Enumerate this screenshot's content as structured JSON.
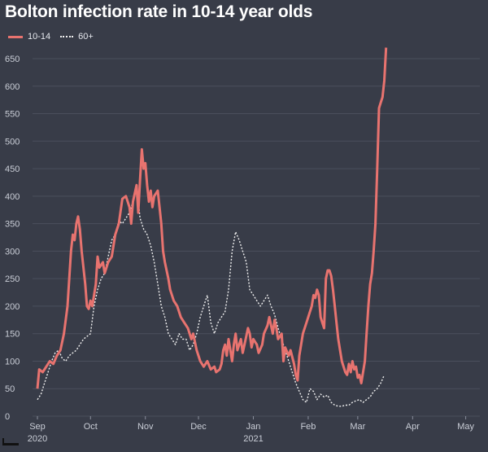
{
  "chart_data": {
    "type": "line",
    "title": "Bolton infection rate in 10-14 year olds",
    "legend_position": "top-left",
    "grid": true,
    "ylim": [
      0,
      650
    ],
    "yticks": [
      0,
      50,
      100,
      150,
      200,
      250,
      300,
      350,
      400,
      450,
      500,
      550,
      600,
      650
    ],
    "xlim": [
      0,
      250
    ],
    "xticks": [
      {
        "x": 0,
        "label": "Sep",
        "sublabel": "2020"
      },
      {
        "x": 30,
        "label": "Oct",
        "sublabel": ""
      },
      {
        "x": 61,
        "label": "Nov",
        "sublabel": ""
      },
      {
        "x": 91,
        "label": "Dec",
        "sublabel": ""
      },
      {
        "x": 122,
        "label": "Jan",
        "sublabel": "2021"
      },
      {
        "x": 153,
        "label": "Feb",
        "sublabel": ""
      },
      {
        "x": 181,
        "label": "Mar",
        "sublabel": ""
      },
      {
        "x": 212,
        "label": "Apr",
        "sublabel": ""
      },
      {
        "x": 242,
        "label": "May",
        "sublabel": ""
      }
    ],
    "series": [
      {
        "name": "10-14",
        "color": "#e8736f",
        "style": "solid",
        "points": [
          [
            0,
            50
          ],
          [
            1,
            85
          ],
          [
            3,
            80
          ],
          [
            5,
            90
          ],
          [
            7,
            100
          ],
          [
            9,
            95
          ],
          [
            11,
            110
          ],
          [
            13,
            120
          ],
          [
            15,
            150
          ],
          [
            17,
            200
          ],
          [
            19,
            300
          ],
          [
            20,
            330
          ],
          [
            21,
            320
          ],
          [
            22,
            350
          ],
          [
            23,
            363
          ],
          [
            24,
            340
          ],
          [
            25,
            300
          ],
          [
            26,
            270
          ],
          [
            27,
            240
          ],
          [
            28,
            200
          ],
          [
            29,
            195
          ],
          [
            30,
            210
          ],
          [
            31,
            200
          ],
          [
            33,
            240
          ],
          [
            34,
            290
          ],
          [
            35,
            270
          ],
          [
            37,
            280
          ],
          [
            38,
            260
          ],
          [
            40,
            280
          ],
          [
            42,
            290
          ],
          [
            44,
            330
          ],
          [
            46,
            350
          ],
          [
            48,
            395
          ],
          [
            50,
            400
          ],
          [
            52,
            380
          ],
          [
            53,
            350
          ],
          [
            54,
            390
          ],
          [
            56,
            420
          ],
          [
            57,
            370
          ],
          [
            58,
            430
          ],
          [
            59,
            485
          ],
          [
            60,
            450
          ],
          [
            61,
            460
          ],
          [
            62,
            420
          ],
          [
            63,
            390
          ],
          [
            64,
            410
          ],
          [
            65,
            380
          ],
          [
            66,
            400
          ],
          [
            68,
            410
          ],
          [
            70,
            350
          ],
          [
            71,
            300
          ],
          [
            72,
            280
          ],
          [
            74,
            250
          ],
          [
            75,
            230
          ],
          [
            77,
            210
          ],
          [
            79,
            200
          ],
          [
            81,
            180
          ],
          [
            83,
            170
          ],
          [
            85,
            160
          ],
          [
            87,
            140
          ],
          [
            88,
            150
          ],
          [
            90,
            120
          ],
          [
            92,
            100
          ],
          [
            94,
            90
          ],
          [
            96,
            100
          ],
          [
            98,
            85
          ],
          [
            100,
            90
          ],
          [
            101,
            80
          ],
          [
            103,
            85
          ],
          [
            104,
            95
          ],
          [
            105,
            120
          ],
          [
            106,
            130
          ],
          [
            107,
            110
          ],
          [
            108,
            140
          ],
          [
            110,
            100
          ],
          [
            111,
            130
          ],
          [
            112,
            150
          ],
          [
            113,
            120
          ],
          [
            115,
            140
          ],
          [
            116,
            115
          ],
          [
            117,
            130
          ],
          [
            119,
            160
          ],
          [
            120,
            150
          ],
          [
            121,
            125
          ],
          [
            122,
            140
          ],
          [
            124,
            130
          ],
          [
            125,
            115
          ],
          [
            127,
            130
          ],
          [
            128,
            150
          ],
          [
            130,
            165
          ],
          [
            131,
            180
          ],
          [
            133,
            150
          ],
          [
            134,
            175
          ],
          [
            135,
            160
          ],
          [
            136,
            140
          ],
          [
            138,
            150
          ],
          [
            139,
            100
          ],
          [
            140,
            125
          ],
          [
            142,
            110
          ],
          [
            143,
            120
          ],
          [
            145,
            95
          ],
          [
            146,
            75
          ],
          [
            147,
            65
          ],
          [
            148,
            110
          ],
          [
            149,
            130
          ],
          [
            150,
            150
          ],
          [
            152,
            170
          ],
          [
            154,
            190
          ],
          [
            155,
            200
          ],
          [
            156,
            220
          ],
          [
            157,
            215
          ],
          [
            158,
            230
          ],
          [
            159,
            220
          ],
          [
            160,
            180
          ],
          [
            161,
            170
          ],
          [
            162,
            160
          ],
          [
            163,
            250
          ],
          [
            164,
            265
          ],
          [
            165,
            265
          ],
          [
            166,
            255
          ],
          [
            167,
            230
          ],
          [
            168,
            200
          ],
          [
            169,
            170
          ],
          [
            170,
            140
          ],
          [
            171,
            120
          ],
          [
            172,
            100
          ],
          [
            173,
            90
          ],
          [
            174,
            80
          ],
          [
            175,
            75
          ],
          [
            176,
            95
          ],
          [
            177,
            80
          ],
          [
            178,
            100
          ],
          [
            179,
            85
          ],
          [
            180,
            90
          ],
          [
            181,
            70
          ],
          [
            182,
            75
          ],
          [
            183,
            60
          ],
          [
            184,
            80
          ],
          [
            185,
            100
          ],
          [
            186,
            150
          ],
          [
            187,
            200
          ],
          [
            188,
            240
          ],
          [
            189,
            260
          ],
          [
            190,
            300
          ],
          [
            191,
            350
          ],
          [
            192,
            450
          ],
          [
            193,
            560
          ],
          [
            194,
            570
          ],
          [
            195,
            580
          ],
          [
            196,
            610
          ],
          [
            197,
            670
          ]
        ]
      },
      {
        "name": "60+",
        "color": "#f0f0f0",
        "style": "dotted",
        "points": [
          [
            0,
            30
          ],
          [
            2,
            40
          ],
          [
            4,
            60
          ],
          [
            6,
            80
          ],
          [
            8,
            100
          ],
          [
            10,
            115
          ],
          [
            12,
            120
          ],
          [
            14,
            105
          ],
          [
            16,
            100
          ],
          [
            18,
            110
          ],
          [
            20,
            115
          ],
          [
            22,
            120
          ],
          [
            24,
            130
          ],
          [
            26,
            140
          ],
          [
            28,
            145
          ],
          [
            30,
            150
          ],
          [
            32,
            200
          ],
          [
            34,
            230
          ],
          [
            36,
            250
          ],
          [
            38,
            260
          ],
          [
            40,
            290
          ],
          [
            42,
            320
          ],
          [
            44,
            330
          ],
          [
            46,
            355
          ],
          [
            48,
            350
          ],
          [
            50,
            360
          ],
          [
            52,
            370
          ],
          [
            54,
            390
          ],
          [
            56,
            420
          ],
          [
            58,
            360
          ],
          [
            60,
            340
          ],
          [
            62,
            330
          ],
          [
            64,
            310
          ],
          [
            66,
            280
          ],
          [
            68,
            240
          ],
          [
            70,
            200
          ],
          [
            72,
            180
          ],
          [
            74,
            150
          ],
          [
            76,
            140
          ],
          [
            78,
            130
          ],
          [
            80,
            150
          ],
          [
            82,
            140
          ],
          [
            84,
            140
          ],
          [
            86,
            120
          ],
          [
            88,
            130
          ],
          [
            90,
            150
          ],
          [
            92,
            180
          ],
          [
            94,
            200
          ],
          [
            96,
            220
          ],
          [
            98,
            170
          ],
          [
            100,
            150
          ],
          [
            102,
            170
          ],
          [
            104,
            180
          ],
          [
            106,
            190
          ],
          [
            108,
            230
          ],
          [
            110,
            300
          ],
          [
            112,
            335
          ],
          [
            114,
            320
          ],
          [
            116,
            300
          ],
          [
            118,
            280
          ],
          [
            120,
            230
          ],
          [
            122,
            220
          ],
          [
            124,
            210
          ],
          [
            126,
            200
          ],
          [
            128,
            210
          ],
          [
            130,
            220
          ],
          [
            132,
            200
          ],
          [
            134,
            185
          ],
          [
            136,
            160
          ],
          [
            138,
            140
          ],
          [
            140,
            120
          ],
          [
            142,
            100
          ],
          [
            144,
            80
          ],
          [
            146,
            60
          ],
          [
            148,
            45
          ],
          [
            150,
            30
          ],
          [
            152,
            25
          ],
          [
            154,
            50
          ],
          [
            156,
            45
          ],
          [
            158,
            30
          ],
          [
            160,
            40
          ],
          [
            162,
            35
          ],
          [
            164,
            38
          ],
          [
            166,
            25
          ],
          [
            168,
            20
          ],
          [
            170,
            18
          ],
          [
            172,
            18
          ],
          [
            174,
            20
          ],
          [
            176,
            20
          ],
          [
            178,
            25
          ],
          [
            180,
            28
          ],
          [
            182,
            30
          ],
          [
            184,
            25
          ],
          [
            186,
            30
          ],
          [
            188,
            35
          ],
          [
            190,
            45
          ],
          [
            192,
            50
          ],
          [
            194,
            60
          ],
          [
            196,
            75
          ]
        ]
      }
    ]
  }
}
